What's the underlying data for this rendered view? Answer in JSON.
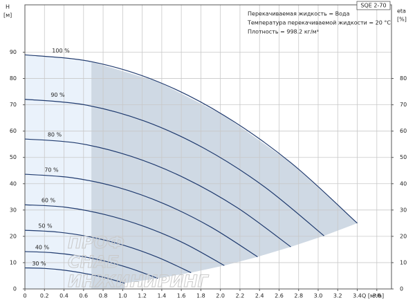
{
  "chart_data": {
    "type": "line",
    "model": "SQE 2-70",
    "annotations": [
      "Перекачиваемая жидкость = Вода",
      "Температура перекачиваемой жидкости = 20 °C",
      "Плотность = 998.2 кг/м³"
    ],
    "watermark": [
      "ПРОФ",
      "СНАБ",
      "ИНЖИНИРИНГ"
    ],
    "y_label": "H",
    "y_unit": "[м]",
    "y2_label": "eta",
    "y2_unit": "[%]",
    "x_label": "Q [м³/h]",
    "xlim": [
      0,
      3.75
    ],
    "ylim": [
      0,
      108
    ],
    "y2lim": [
      0,
      108
    ],
    "xticks": [
      0,
      0.2,
      0.4,
      0.6,
      0.8,
      {
        "value": 1,
        "label": "1.0"
      },
      1.2,
      1.4,
      1.6,
      1.8,
      {
        "value": 2,
        "label": "2.0"
      },
      2.2,
      2.4,
      2.6,
      2.8,
      {
        "value": 3,
        "label": "3.0"
      },
      3.2,
      3.4,
      3.6
    ],
    "yticks": [
      0,
      10,
      20,
      30,
      40,
      50,
      60,
      70,
      80,
      90
    ],
    "y2ticks": [
      0,
      10,
      20,
      30,
      40,
      50,
      60,
      70,
      80
    ],
    "grid": true,
    "series": [
      {
        "name": "100 %",
        "color": "#1f3a6e",
        "x": [
          0,
          0.68,
          1.36,
          2.04,
          2.72,
          3.4
        ],
        "values": [
          89,
          86.4,
          78.8,
          65.9,
          48.0,
          25.0
        ]
      },
      {
        "name": "90 %",
        "color": "#1f3a6e",
        "x": [
          0,
          0.612,
          1.224,
          1.836,
          2.448,
          3.06
        ],
        "values": [
          72.1,
          70.0,
          63.8,
          53.4,
          38.9,
          20.2
        ]
      },
      {
        "name": "80 %",
        "color": "#1f3a6e",
        "x": [
          0,
          0.544,
          1.088,
          1.632,
          2.176,
          2.72
        ],
        "values": [
          57.0,
          55.4,
          50.4,
          42.2,
          30.8,
          16.0
        ]
      },
      {
        "name": "70 %",
        "color": "#1f3a6e",
        "x": [
          0,
          0.476,
          0.952,
          1.428,
          1.904,
          2.38
        ],
        "values": [
          43.6,
          42.3,
          38.6,
          32.3,
          23.5,
          12.2
        ]
      },
      {
        "name": "60 %",
        "color": "#1f3a6e",
        "x": [
          0,
          0.408,
          0.816,
          1.224,
          1.632,
          2.04
        ],
        "values": [
          32.0,
          31.1,
          28.3,
          23.7,
          17.3,
          8.9
        ]
      },
      {
        "name": "50 %",
        "color": "#1f3a6e",
        "x": [
          0,
          0.34,
          0.68,
          1.02,
          1.36,
          1.7
        ],
        "values": [
          22.3,
          21.6,
          19.7,
          16.5,
          12.0,
          6.2
        ]
      },
      {
        "name": "40 %",
        "color": "#1f3a6e",
        "x": [
          0,
          0.272,
          0.544,
          0.816,
          1.088,
          1.36
        ],
        "values": [
          14.2,
          13.8,
          12.6,
          10.6,
          7.7,
          4.0
        ]
      },
      {
        "name": "30 %",
        "color": "#1f3a6e",
        "x": [
          0,
          0.204,
          0.408,
          0.612,
          0.816,
          1.02
        ],
        "values": [
          8.0,
          7.8,
          7.1,
          5.9,
          4.3,
          2.2
        ]
      }
    ]
  }
}
